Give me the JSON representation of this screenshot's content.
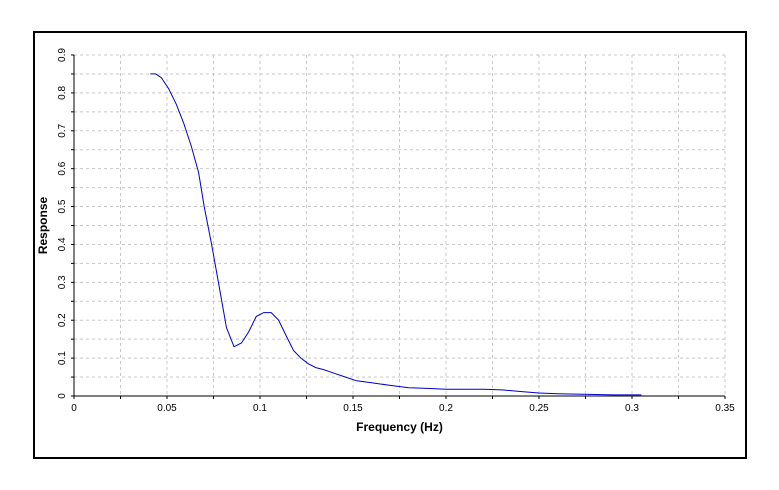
{
  "chart_data": {
    "type": "line",
    "title": "",
    "xlabel": "Frequency (Hz)",
    "ylabel": "Response",
    "xlim": [
      0,
      0.35
    ],
    "ylim": [
      0,
      0.9
    ],
    "x_ticks": [
      0,
      0.05,
      0.1,
      0.15,
      0.2,
      0.25,
      0.3,
      0.35
    ],
    "x_tick_labels": [
      "0",
      "0.05",
      "0.1",
      "0.15",
      "0.2",
      "0.25",
      "0.3",
      "0.35"
    ],
    "y_ticks": [
      0,
      0.1,
      0.2,
      0.3,
      0.4,
      0.5,
      0.6,
      0.7,
      0.8,
      0.9
    ],
    "y_tick_labels": [
      "0",
      "0.1",
      "0.2",
      "0.3",
      "0.4",
      "0.5",
      "0.6",
      "0.7",
      "0.8",
      "0.9"
    ],
    "grid": true,
    "grid_style": "dashed",
    "legend": "none",
    "series": [
      {
        "color": "#0000cc",
        "x": [
          0.041,
          0.044,
          0.047,
          0.051,
          0.055,
          0.059,
          0.063,
          0.067,
          0.07,
          0.074,
          0.078,
          0.082,
          0.086,
          0.09,
          0.094,
          0.098,
          0.102,
          0.106,
          0.11,
          0.114,
          0.118,
          0.122,
          0.126,
          0.13,
          0.134,
          0.14,
          0.146,
          0.152,
          0.16,
          0.17,
          0.18,
          0.19,
          0.2,
          0.21,
          0.22,
          0.23,
          0.24,
          0.25,
          0.26,
          0.27,
          0.28,
          0.29,
          0.3,
          0.305
        ],
        "y": [
          0.85,
          0.85,
          0.84,
          0.81,
          0.77,
          0.72,
          0.66,
          0.59,
          0.5,
          0.4,
          0.29,
          0.18,
          0.13,
          0.14,
          0.17,
          0.21,
          0.22,
          0.22,
          0.2,
          0.16,
          0.12,
          0.1,
          0.085,
          0.075,
          0.07,
          0.06,
          0.05,
          0.04,
          0.035,
          0.028,
          0.022,
          0.02,
          0.018,
          0.018,
          0.018,
          0.016,
          0.012,
          0.008,
          0.006,
          0.005,
          0.004,
          0.003,
          0.003,
          0.003
        ]
      }
    ]
  }
}
